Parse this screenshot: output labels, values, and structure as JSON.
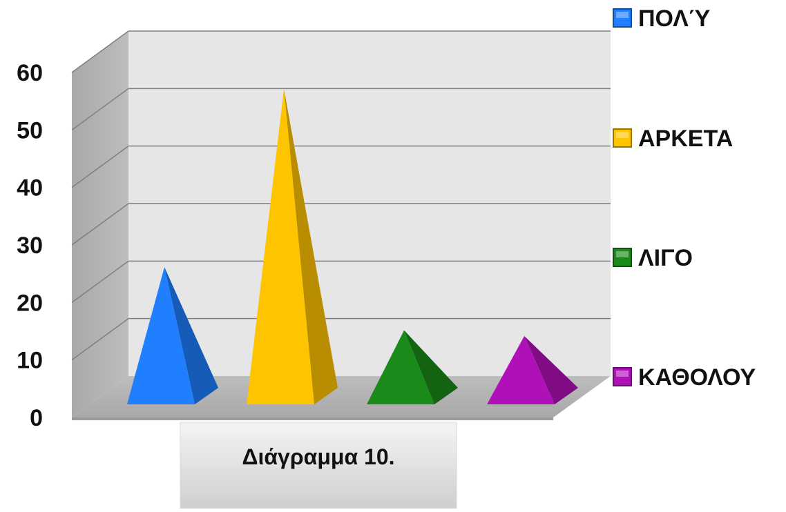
{
  "chart_data": {
    "type": "bar",
    "style": "3d-pyramid",
    "categories": [
      "Διάγραμμα 10."
    ],
    "series": [
      {
        "name": "ΠΟΛΎ",
        "values": [
          24
        ],
        "color": "#1f7fff"
      },
      {
        "name": "ΑΡΚΕΤΑ",
        "values": [
          55
        ],
        "color": "#ffc400"
      },
      {
        "name": "ΛΙΓΟ",
        "values": [
          13
        ],
        "color": "#1a8a1a"
      },
      {
        "name": "ΚΑΘΟΛΟΥ",
        "values": [
          12
        ],
        "color": "#b010b8"
      }
    ],
    "ylim": [
      0,
      60
    ],
    "yticks": [
      "0",
      "10",
      "20",
      "30",
      "40",
      "50",
      "60"
    ],
    "grid": true,
    "legend_position": "right"
  }
}
